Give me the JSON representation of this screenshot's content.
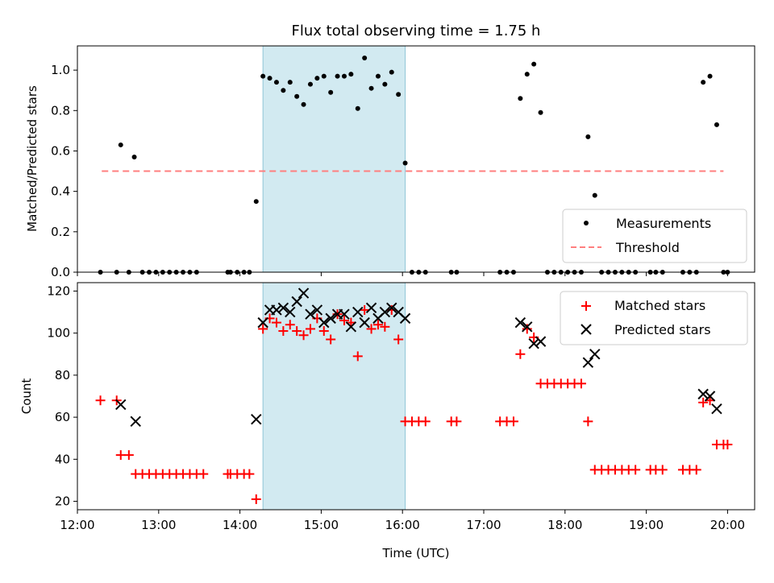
{
  "chart_data": [
    {
      "type": "scatter",
      "title": "Flux total observing time = 1.75 h",
      "xlabel": "",
      "ylabel": "Matched/Predicted stars",
      "xlim": [
        "12:00",
        "20:20"
      ],
      "ylim": [
        0,
        1.12
      ],
      "yticks": [
        0.0,
        0.2,
        0.4,
        0.6,
        0.8,
        1.0
      ],
      "ytick_labels": [
        "0.0",
        "0.2",
        "0.4",
        "0.6",
        "0.8",
        "1.0"
      ],
      "highlight_span": {
        "from": "14:17",
        "to": "16:02",
        "color": "#add8e6"
      },
      "legend": {
        "position": "lower right",
        "entries": [
          "Measurements",
          "Threshold"
        ]
      },
      "threshold": {
        "name": "Threshold",
        "y": 0.5,
        "from": "12:18",
        "to": "19:57",
        "color": "#ff7f7f",
        "style": "dashed"
      },
      "series": [
        {
          "name": "Measurements",
          "color": "#000000",
          "marker": "dot",
          "points": [
            [
              "12:17",
              0
            ],
            [
              "12:29",
              0
            ],
            [
              "12:32",
              0.63
            ],
            [
              "12:38",
              0
            ],
            [
              "12:42",
              0.57
            ],
            [
              "12:48",
              0
            ],
            [
              "12:53",
              0
            ],
            [
              "12:58",
              0
            ],
            [
              "13:03",
              0
            ],
            [
              "13:08",
              0
            ],
            [
              "13:13",
              0
            ],
            [
              "13:18",
              0
            ],
            [
              "13:23",
              0
            ],
            [
              "13:28",
              0
            ],
            [
              "13:51",
              0
            ],
            [
              "13:53",
              0
            ],
            [
              "13:58",
              0
            ],
            [
              "14:03",
              0
            ],
            [
              "14:07",
              0
            ],
            [
              "14:12",
              0.35
            ],
            [
              "14:17",
              0.97
            ],
            [
              "14:22",
              0.96
            ],
            [
              "14:27",
              0.94
            ],
            [
              "14:32",
              0.9
            ],
            [
              "14:37",
              0.94
            ],
            [
              "14:42",
              0.87
            ],
            [
              "14:47",
              0.83
            ],
            [
              "14:52",
              0.93
            ],
            [
              "14:57",
              0.96
            ],
            [
              "15:02",
              0.97
            ],
            [
              "15:07",
              0.89
            ],
            [
              "15:12",
              0.97
            ],
            [
              "15:17",
              0.97
            ],
            [
              "15:22",
              0.98
            ],
            [
              "15:27",
              0.81
            ],
            [
              "15:32",
              1.06
            ],
            [
              "15:37",
              0.91
            ],
            [
              "15:42",
              0.97
            ],
            [
              "15:47",
              0.93
            ],
            [
              "15:52",
              0.99
            ],
            [
              "15:57",
              0.88
            ],
            [
              "16:02",
              0.54
            ],
            [
              "16:07",
              0
            ],
            [
              "16:12",
              0
            ],
            [
              "16:17",
              0
            ],
            [
              "16:36",
              0
            ],
            [
              "16:40",
              0
            ],
            [
              "17:12",
              0
            ],
            [
              "17:17",
              0
            ],
            [
              "17:22",
              0
            ],
            [
              "17:27",
              0.86
            ],
            [
              "17:32",
              0.98
            ],
            [
              "17:37",
              1.03
            ],
            [
              "17:42",
              0.79
            ],
            [
              "17:47",
              0
            ],
            [
              "17:52",
              0
            ],
            [
              "17:57",
              0
            ],
            [
              "18:02",
              0
            ],
            [
              "18:07",
              0
            ],
            [
              "18:12",
              0
            ],
            [
              "18:17",
              0.67
            ],
            [
              "18:22",
              0.38
            ],
            [
              "18:27",
              0
            ],
            [
              "18:32",
              0
            ],
            [
              "18:37",
              0
            ],
            [
              "18:42",
              0
            ],
            [
              "18:47",
              0
            ],
            [
              "18:52",
              0
            ],
            [
              "19:03",
              0
            ],
            [
              "19:07",
              0
            ],
            [
              "19:12",
              0
            ],
            [
              "19:27",
              0
            ],
            [
              "19:32",
              0
            ],
            [
              "19:37",
              0
            ],
            [
              "19:42",
              0.94
            ],
            [
              "19:47",
              0.97
            ],
            [
              "19:52",
              0.73
            ],
            [
              "19:57",
              0
            ],
            [
              "20:00",
              0
            ]
          ]
        }
      ]
    },
    {
      "type": "scatter",
      "title": "",
      "xlabel": "Time (UTC)",
      "ylabel": "Count",
      "xlim": [
        "12:00",
        "20:20"
      ],
      "ylim": [
        16,
        124
      ],
      "xticks": [
        "12:00",
        "13:00",
        "14:00",
        "15:00",
        "16:00",
        "17:00",
        "18:00",
        "19:00",
        "20:00"
      ],
      "yticks": [
        20,
        40,
        60,
        80,
        100,
        120
      ],
      "highlight_span": {
        "from": "14:17",
        "to": "16:02",
        "color": "#add8e6"
      },
      "legend": {
        "position": "upper right",
        "entries": [
          "Matched stars",
          "Predicted stars"
        ]
      },
      "series": [
        {
          "name": "Matched stars",
          "color": "#ff0000",
          "marker": "plus",
          "points": [
            [
              "12:17",
              68
            ],
            [
              "12:29",
              68
            ],
            [
              "12:32",
              42
            ],
            [
              "12:38",
              42
            ],
            [
              "12:43",
              33
            ],
            [
              "12:48",
              33
            ],
            [
              "12:53",
              33
            ],
            [
              "12:58",
              33
            ],
            [
              "13:03",
              33
            ],
            [
              "13:08",
              33
            ],
            [
              "13:13",
              33
            ],
            [
              "13:18",
              33
            ],
            [
              "13:23",
              33
            ],
            [
              "13:28",
              33
            ],
            [
              "13:33",
              33
            ],
            [
              "13:51",
              33
            ],
            [
              "13:53",
              33
            ],
            [
              "13:58",
              33
            ],
            [
              "14:03",
              33
            ],
            [
              "14:07",
              33
            ],
            [
              "14:12",
              21
            ],
            [
              "14:17",
              102
            ],
            [
              "14:22",
              107
            ],
            [
              "14:27",
              105
            ],
            [
              "14:32",
              101
            ],
            [
              "14:37",
              104
            ],
            [
              "14:42",
              101
            ],
            [
              "14:47",
              99
            ],
            [
              "14:52",
              102
            ],
            [
              "14:57",
              107
            ],
            [
              "15:02",
              101
            ],
            [
              "15:07",
              97
            ],
            [
              "15:12",
              109
            ],
            [
              "15:17",
              106
            ],
            [
              "15:22",
              105
            ],
            [
              "15:27",
              89
            ],
            [
              "15:32",
              111
            ],
            [
              "15:37",
              102
            ],
            [
              "15:42",
              104
            ],
            [
              "15:47",
              103
            ],
            [
              "15:52",
              111
            ],
            [
              "15:57",
              97
            ],
            [
              "16:02",
              58
            ],
            [
              "16:07",
              58
            ],
            [
              "16:12",
              58
            ],
            [
              "16:17",
              58
            ],
            [
              "16:36",
              58
            ],
            [
              "16:40",
              58
            ],
            [
              "17:12",
              58
            ],
            [
              "17:17",
              58
            ],
            [
              "17:22",
              58
            ],
            [
              "17:27",
              90
            ],
            [
              "17:32",
              102
            ],
            [
              "17:37",
              98
            ],
            [
              "17:42",
              76
            ],
            [
              "17:47",
              76
            ],
            [
              "17:52",
              76
            ],
            [
              "17:57",
              76
            ],
            [
              "18:02",
              76
            ],
            [
              "18:07",
              76
            ],
            [
              "18:12",
              76
            ],
            [
              "18:17",
              58
            ],
            [
              "18:22",
              35
            ],
            [
              "18:27",
              35
            ],
            [
              "18:32",
              35
            ],
            [
              "18:37",
              35
            ],
            [
              "18:42",
              35
            ],
            [
              "18:47",
              35
            ],
            [
              "18:52",
              35
            ],
            [
              "19:03",
              35
            ],
            [
              "19:07",
              35
            ],
            [
              "19:12",
              35
            ],
            [
              "19:27",
              35
            ],
            [
              "19:32",
              35
            ],
            [
              "19:37",
              35
            ],
            [
              "19:42",
              67
            ],
            [
              "19:47",
              68
            ],
            [
              "19:52",
              47
            ],
            [
              "19:57",
              47
            ],
            [
              "20:00",
              47
            ]
          ]
        },
        {
          "name": "Predicted stars",
          "color": "#000000",
          "marker": "x",
          "points": [
            [
              "12:32",
              66
            ],
            [
              "12:43",
              58
            ],
            [
              "14:12",
              59
            ],
            [
              "14:17",
              105
            ],
            [
              "14:22",
              111
            ],
            [
              "14:27",
              111
            ],
            [
              "14:32",
              112
            ],
            [
              "14:37",
              110
            ],
            [
              "14:42",
              115
            ],
            [
              "14:47",
              119
            ],
            [
              "14:52",
              109
            ],
            [
              "14:57",
              111
            ],
            [
              "15:02",
              105
            ],
            [
              "15:07",
              107
            ],
            [
              "15:12",
              109
            ],
            [
              "15:17",
              109
            ],
            [
              "15:22",
              103
            ],
            [
              "15:27",
              110
            ],
            [
              "15:32",
              105
            ],
            [
              "15:37",
              112
            ],
            [
              "15:42",
              107
            ],
            [
              "15:47",
              110
            ],
            [
              "15:52",
              112
            ],
            [
              "15:57",
              110
            ],
            [
              "16:02",
              107
            ],
            [
              "17:27",
              105
            ],
            [
              "17:32",
              103
            ],
            [
              "17:37",
              95
            ],
            [
              "17:42",
              96
            ],
            [
              "18:17",
              86
            ],
            [
              "18:22",
              90
            ],
            [
              "19:42",
              71
            ],
            [
              "19:47",
              70
            ],
            [
              "19:52",
              64
            ]
          ]
        }
      ]
    }
  ]
}
